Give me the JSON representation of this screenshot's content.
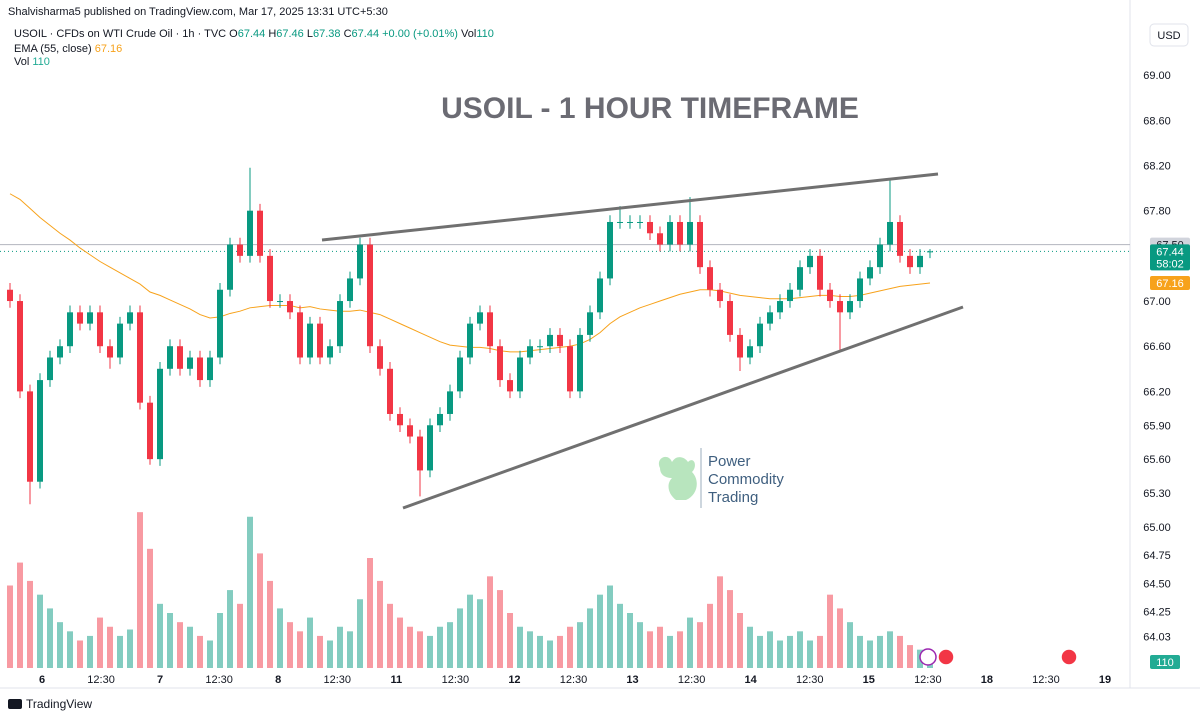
{
  "header": {
    "published": "Shalvisharma5 published on TradingView.com, Mar 17, 2025 13:31 UTC+5:30",
    "symbol": "USOIL · CFDs on WTI Crude Oil · 1h · TVC",
    "ohlc": [
      {
        "label": "O",
        "value": "67.44"
      },
      {
        "label": "H",
        "value": "67.46"
      },
      {
        "label": "L",
        "value": "67.38"
      },
      {
        "label": "C",
        "value": "67.44"
      }
    ],
    "change": "+0.00 (+0.01%)",
    "vol_label": "Vol",
    "vol_value": "110",
    "ema_label": "EMA (55, close)",
    "ema_value": "67.16",
    "vol_row_label": "Vol",
    "vol_row_value": "110",
    "currency": "USD"
  },
  "watermark": {
    "line1": "Power",
    "line2": "Commodity",
    "line3": "Trading"
  },
  "footer": {
    "brand": "TradingView"
  },
  "chart_data": {
    "type": "candlestick",
    "title": "USOIL - 1 HOUR TIMEFRAME",
    "up_color": "#089981",
    "down_color": "#f23645",
    "grid": false,
    "ylim": [
      63.6,
      69.4
    ],
    "yticks": [
      {
        "value": 69,
        "label": "69.00"
      },
      {
        "value": 68.6,
        "label": "68.60"
      },
      {
        "value": 68.2,
        "label": "68.20"
      },
      {
        "value": 67.8,
        "label": "67.80"
      },
      {
        "value": 67,
        "label": "67.00"
      },
      {
        "value": 66.6,
        "label": "66.60"
      },
      {
        "value": 66.2,
        "label": "66.20"
      },
      {
        "value": 65.9,
        "label": "65.90"
      },
      {
        "value": 65.6,
        "label": "65.60"
      },
      {
        "value": 65.3,
        "label": "65.30"
      },
      {
        "value": 65,
        "label": "65.00"
      },
      {
        "value": 64.75,
        "label": "64.75"
      },
      {
        "value": 64.5,
        "label": "64.50"
      },
      {
        "value": 64.25,
        "label": "64.25"
      },
      64.03
    ],
    "xticks": [
      "6",
      "12:30",
      "7",
      "12:30",
      "8",
      "12:30",
      "11",
      "12:30",
      "12",
      "12:30",
      "13",
      "12:30",
      "14",
      "12:30",
      "15",
      "12:30",
      "18",
      "12:30",
      "19"
    ],
    "price_labels": [
      {
        "value": 67.5,
        "label": "67.50",
        "color": "#d1d4dc"
      },
      {
        "value": 67.44,
        "label": "67.44",
        "sub": "58:02",
        "color": "#089981"
      },
      {
        "value": 67.16,
        "label": "67.16",
        "color": "#f7a21b"
      }
    ],
    "ohlc": [
      [
        67.1,
        67.16,
        66.94,
        67.0
      ],
      [
        67.0,
        67.06,
        66.14,
        66.2
      ],
      [
        66.2,
        66.26,
        65.2,
        65.4
      ],
      [
        65.4,
        66.36,
        65.34,
        66.3
      ],
      [
        66.3,
        66.56,
        66.24,
        66.5
      ],
      [
        66.5,
        66.66,
        66.44,
        66.6
      ],
      [
        66.6,
        66.96,
        66.54,
        66.9
      ],
      [
        66.9,
        66.96,
        66.74,
        66.8
      ],
      [
        66.8,
        66.96,
        66.74,
        66.9
      ],
      [
        66.9,
        66.96,
        66.54,
        66.6
      ],
      [
        66.6,
        66.66,
        66.4,
        66.5
      ],
      [
        66.5,
        66.86,
        66.44,
        66.8
      ],
      [
        66.8,
        66.96,
        66.74,
        66.9
      ],
      [
        66.9,
        66.96,
        66.04,
        66.1
      ],
      [
        66.1,
        66.16,
        65.55,
        65.6
      ],
      [
        65.6,
        66.46,
        65.54,
        66.4
      ],
      [
        66.4,
        66.66,
        66.34,
        66.6
      ],
      [
        66.6,
        66.66,
        66.34,
        66.4
      ],
      [
        66.4,
        66.56,
        66.34,
        66.5
      ],
      [
        66.5,
        66.56,
        66.24,
        66.3
      ],
      [
        66.3,
        66.56,
        66.24,
        66.5
      ],
      [
        66.5,
        67.16,
        66.44,
        67.1
      ],
      [
        67.1,
        67.56,
        67.04,
        67.5
      ],
      [
        67.5,
        67.56,
        67.34,
        67.4
      ],
      [
        67.4,
        68.18,
        67.34,
        67.8
      ],
      [
        67.8,
        67.86,
        67.34,
        67.4
      ],
      [
        67.4,
        67.46,
        66.94,
        67.0
      ],
      [
        67.0,
        67.06,
        66.94,
        67.0
      ],
      [
        67.0,
        67.06,
        66.84,
        66.9
      ],
      [
        66.9,
        66.96,
        66.44,
        66.5
      ],
      [
        66.5,
        66.86,
        66.44,
        66.8
      ],
      [
        66.8,
        66.86,
        66.44,
        66.5
      ],
      [
        66.5,
        66.66,
        66.44,
        66.6
      ],
      [
        66.6,
        67.06,
        66.54,
        67.0
      ],
      [
        67.0,
        67.26,
        66.94,
        67.2
      ],
      [
        67.2,
        67.56,
        67.14,
        67.5
      ],
      [
        67.5,
        67.56,
        66.54,
        66.6
      ],
      [
        66.6,
        66.66,
        66.34,
        66.4
      ],
      [
        66.4,
        66.46,
        65.94,
        66.0
      ],
      [
        66.0,
        66.06,
        65.84,
        65.9
      ],
      [
        65.9,
        65.96,
        65.74,
        65.8
      ],
      [
        65.8,
        65.86,
        65.27,
        65.5
      ],
      [
        65.5,
        65.96,
        65.44,
        65.9
      ],
      [
        65.9,
        66.06,
        65.84,
        66.0
      ],
      [
        66.0,
        66.26,
        65.94,
        66.2
      ],
      [
        66.2,
        66.56,
        66.14,
        66.5
      ],
      [
        66.5,
        66.86,
        66.44,
        66.8
      ],
      [
        66.8,
        66.96,
        66.74,
        66.9
      ],
      [
        66.9,
        66.96,
        66.54,
        66.6
      ],
      [
        66.6,
        66.66,
        66.24,
        66.3
      ],
      [
        66.3,
        66.36,
        66.14,
        66.2
      ],
      [
        66.2,
        66.56,
        66.14,
        66.5
      ],
      [
        66.5,
        66.66,
        66.44,
        66.6
      ],
      [
        66.6,
        66.66,
        66.54,
        66.6
      ],
      [
        66.6,
        66.76,
        66.54,
        66.7
      ],
      [
        66.7,
        66.76,
        66.54,
        66.6
      ],
      [
        66.6,
        66.66,
        66.14,
        66.2
      ],
      [
        66.2,
        66.76,
        66.14,
        66.7
      ],
      [
        66.7,
        66.96,
        66.64,
        66.9
      ],
      [
        66.9,
        67.26,
        66.84,
        67.2
      ],
      [
        67.2,
        67.76,
        67.14,
        67.7
      ],
      [
        67.7,
        67.84,
        67.64,
        67.7
      ],
      [
        67.7,
        67.76,
        67.64,
        67.7
      ],
      [
        67.7,
        67.76,
        67.64,
        67.7
      ],
      [
        67.7,
        67.76,
        67.54,
        67.6
      ],
      [
        67.6,
        67.66,
        67.44,
        67.5
      ],
      [
        67.5,
        67.76,
        67.44,
        67.7
      ],
      [
        67.7,
        67.76,
        67.44,
        67.5
      ],
      [
        67.5,
        67.92,
        67.44,
        67.7
      ],
      [
        67.7,
        67.76,
        67.24,
        67.3
      ],
      [
        67.3,
        67.36,
        67.04,
        67.1
      ],
      [
        67.1,
        67.16,
        66.94,
        67.0
      ],
      [
        67.0,
        67.06,
        66.64,
        66.7
      ],
      [
        66.7,
        66.76,
        66.38,
        66.5
      ],
      [
        66.5,
        66.66,
        66.44,
        66.6
      ],
      [
        66.6,
        66.86,
        66.54,
        66.8
      ],
      [
        66.8,
        66.96,
        66.74,
        66.9
      ],
      [
        66.9,
        67.06,
        66.84,
        67.0
      ],
      [
        67.0,
        67.16,
        66.94,
        67.1
      ],
      [
        67.1,
        67.36,
        67.04,
        67.3
      ],
      [
        67.3,
        67.46,
        67.24,
        67.4
      ],
      [
        67.4,
        67.46,
        67.04,
        67.1
      ],
      [
        67.1,
        67.16,
        66.94,
        67.0
      ],
      [
        67.0,
        67.06,
        66.55,
        66.9
      ],
      [
        66.9,
        67.06,
        66.84,
        67.0
      ],
      [
        67.0,
        67.26,
        66.94,
        67.2
      ],
      [
        67.2,
        67.36,
        67.14,
        67.3
      ],
      [
        67.3,
        67.56,
        67.24,
        67.5
      ],
      [
        67.5,
        68.08,
        67.44,
        67.7
      ],
      [
        67.7,
        67.76,
        67.34,
        67.4
      ],
      [
        67.4,
        67.46,
        67.24,
        67.3
      ],
      [
        67.3,
        67.46,
        67.24,
        67.4
      ],
      [
        67.44,
        67.46,
        67.38,
        67.44
      ]
    ],
    "ema": {
      "color": "#f7a21b",
      "values": [
        67.95,
        67.9,
        67.82,
        67.74,
        67.67,
        67.6,
        67.54,
        67.47,
        67.41,
        67.35,
        67.3,
        67.25,
        67.2,
        67.15,
        67.08,
        67.05,
        67.01,
        66.97,
        66.93,
        66.88,
        66.85,
        66.86,
        66.89,
        66.91,
        66.94,
        66.95,
        66.96,
        66.96,
        66.96,
        66.94,
        66.95,
        66.93,
        66.92,
        66.91,
        66.91,
        66.92,
        66.9,
        66.88,
        66.84,
        66.8,
        66.76,
        66.72,
        66.68,
        66.64,
        66.61,
        66.6,
        66.59,
        66.59,
        66.58,
        66.56,
        66.55,
        66.55,
        66.56,
        66.57,
        66.58,
        66.59,
        66.6,
        66.62,
        66.66,
        66.72,
        66.8,
        66.86,
        66.9,
        66.94,
        66.97,
        67.0,
        67.03,
        67.06,
        67.08,
        67.1,
        67.1,
        67.09,
        67.07,
        67.05,
        67.04,
        67.03,
        67.02,
        67.02,
        67.02,
        67.03,
        67.04,
        67.05,
        67.05,
        67.04,
        67.04,
        67.05,
        67.07,
        67.09,
        67.11,
        67.13,
        67.14,
        67.15,
        67.16
      ]
    },
    "volume": {
      "vlim": [
        0,
        1800
      ],
      "up_color": "rgba(8,153,129,0.5)",
      "down_color": "rgba(242,54,69,0.5)",
      "badge": 110,
      "values": [
        900,
        1150,
        950,
        800,
        650,
        500,
        400,
        300,
        350,
        550,
        450,
        350,
        420,
        1700,
        1300,
        700,
        600,
        500,
        450,
        350,
        300,
        600,
        850,
        700,
        1650,
        1250,
        950,
        650,
        500,
        400,
        550,
        350,
        300,
        450,
        400,
        750,
        1200,
        950,
        700,
        550,
        450,
        400,
        350,
        450,
        500,
        650,
        800,
        750,
        1000,
        850,
        600,
        450,
        400,
        350,
        300,
        350,
        450,
        500,
        650,
        800,
        900,
        700,
        600,
        500,
        400,
        450,
        350,
        400,
        550,
        500,
        700,
        1000,
        850,
        600,
        450,
        350,
        400,
        300,
        350,
        400,
        300,
        350,
        800,
        650,
        500,
        350,
        300,
        350,
        400,
        350,
        250,
        200,
        110
      ]
    }
  }
}
